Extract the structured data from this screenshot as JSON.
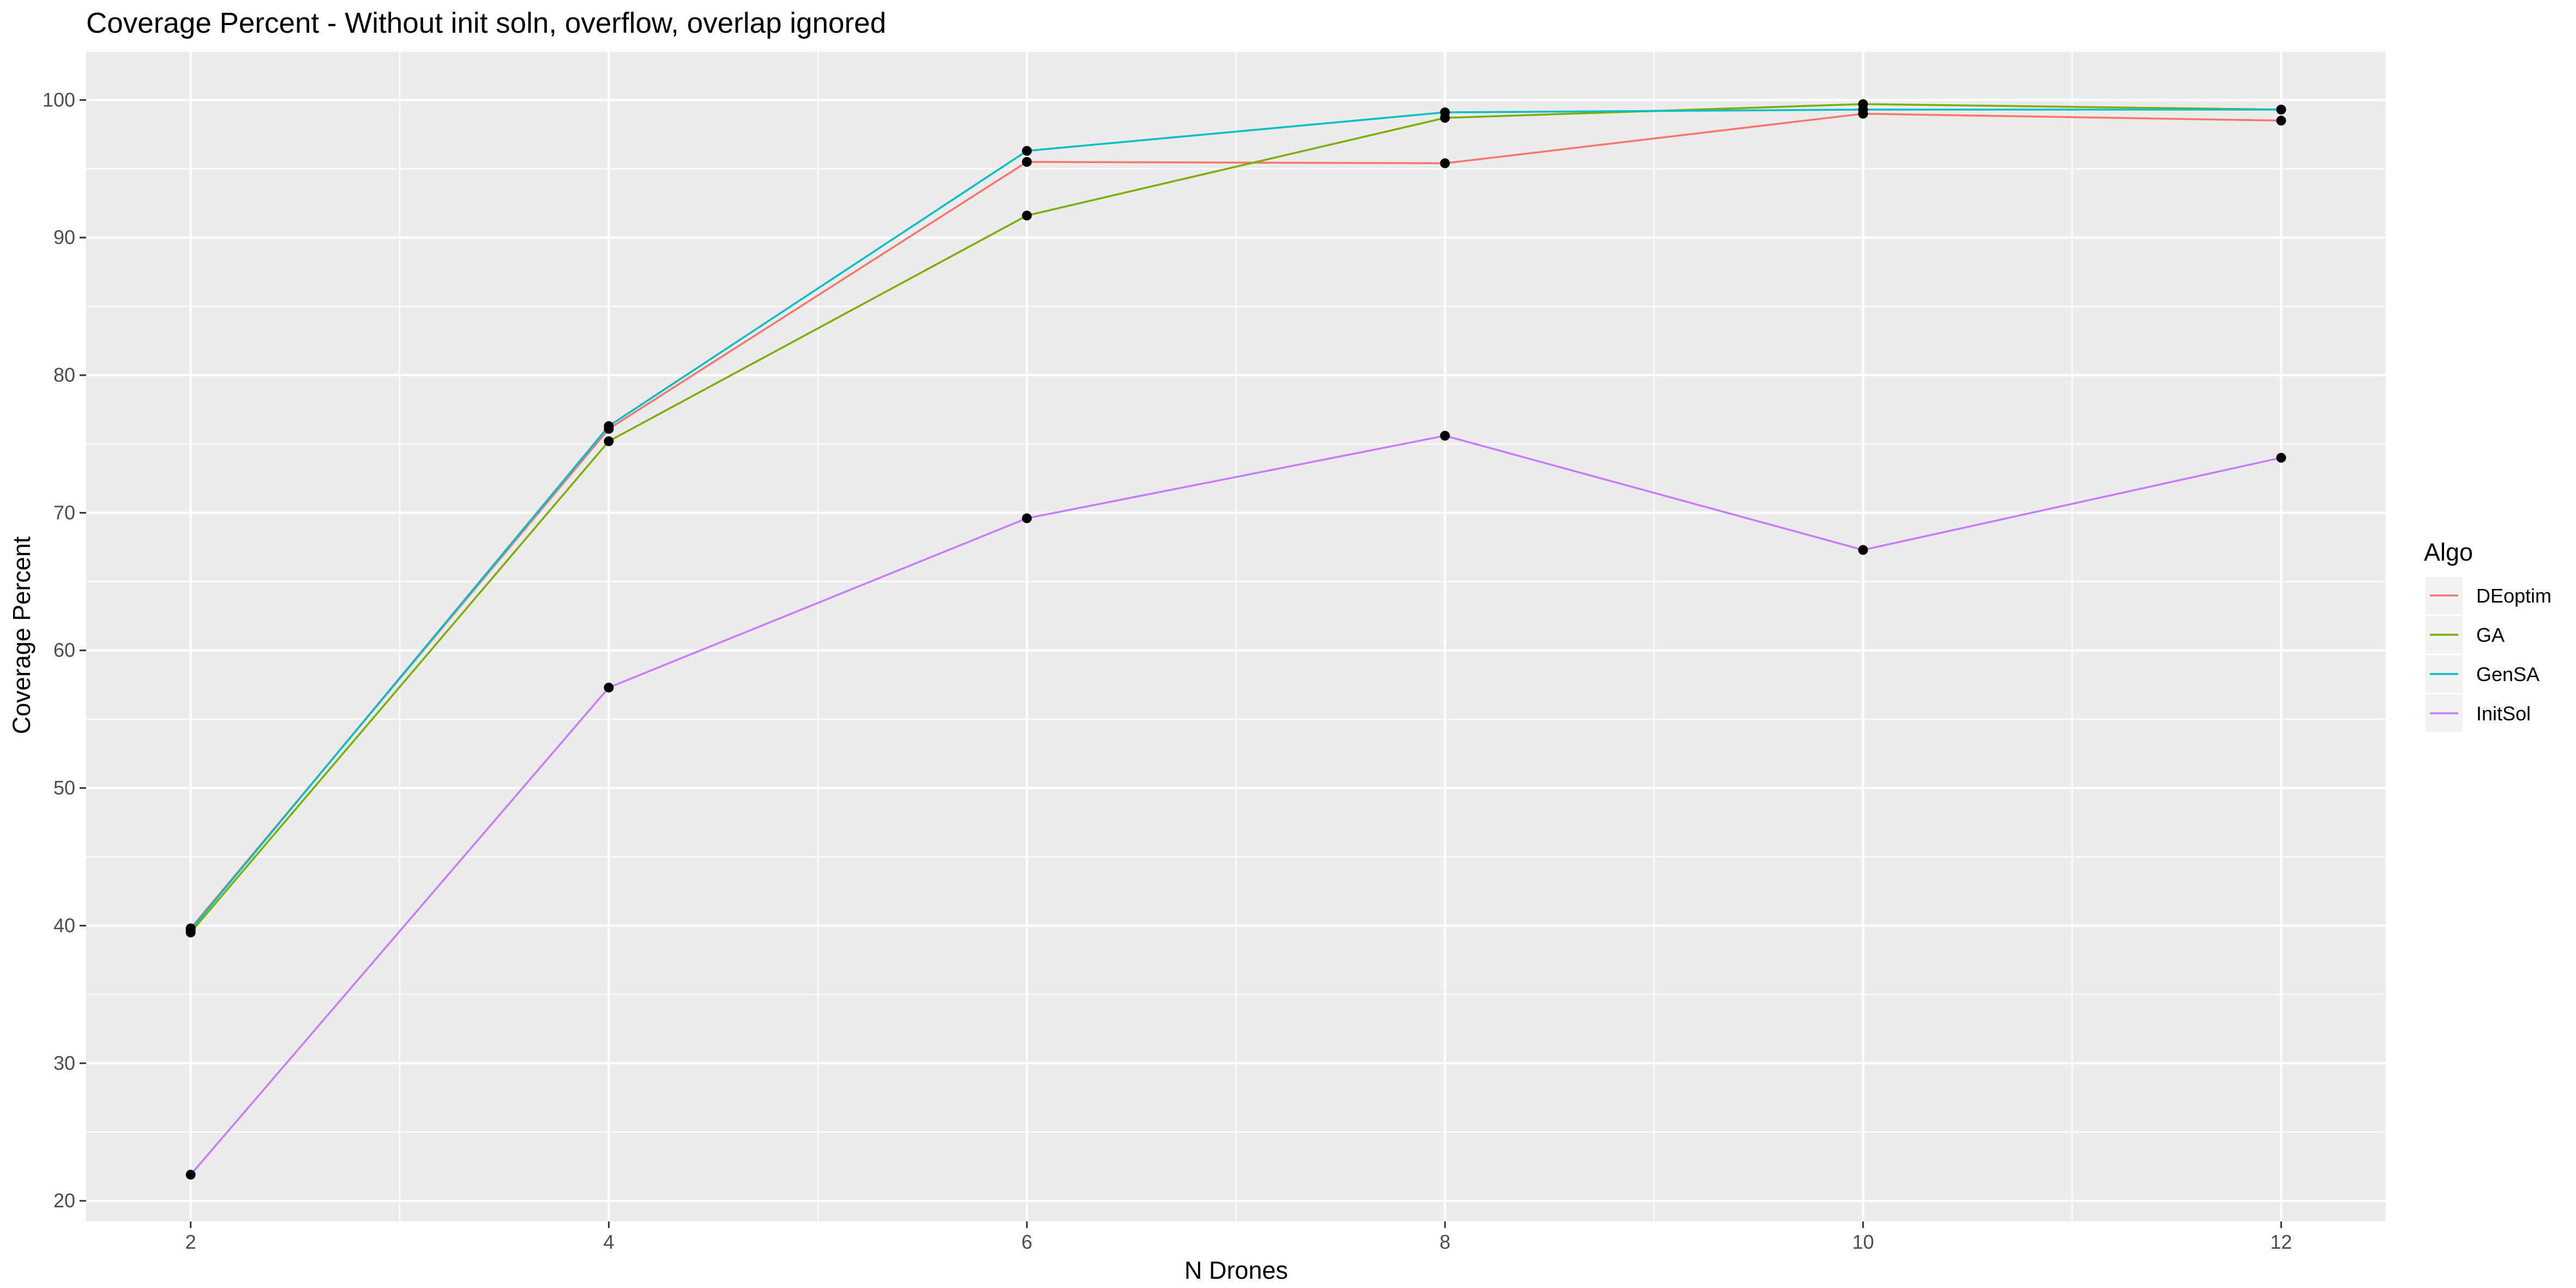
{
  "chart_data": {
    "type": "line",
    "title": "Coverage Percent - Without init soln, overflow, overlap ignored",
    "xlabel": "N Drones",
    "ylabel": "Coverage Percent",
    "x": [
      2,
      4,
      6,
      8,
      10,
      12
    ],
    "xlim": [
      1.5,
      12.5
    ],
    "ylim": [
      18.5,
      103.5
    ],
    "x_ticks": [
      2,
      4,
      6,
      8,
      10,
      12
    ],
    "y_ticks": [
      20,
      30,
      40,
      50,
      60,
      70,
      80,
      90,
      100
    ],
    "grid": true,
    "legend_position": "right",
    "legend_title": "Algo",
    "series": [
      {
        "name": "DEoptim",
        "color": "#F8766D",
        "values": [
          39.8,
          76.1,
          95.5,
          95.4,
          99.0,
          98.5
        ]
      },
      {
        "name": "GA",
        "color": "#7CAE00",
        "values": [
          39.5,
          75.2,
          91.6,
          98.7,
          99.7,
          99.3
        ]
      },
      {
        "name": "GenSA",
        "color": "#00BFC4",
        "values": [
          39.7,
          76.3,
          96.3,
          99.1,
          99.3,
          99.3
        ]
      },
      {
        "name": "InitSol",
        "color": "#C77CFF",
        "values": [
          21.9,
          57.3,
          69.6,
          75.6,
          67.3,
          74.0
        ]
      }
    ]
  }
}
